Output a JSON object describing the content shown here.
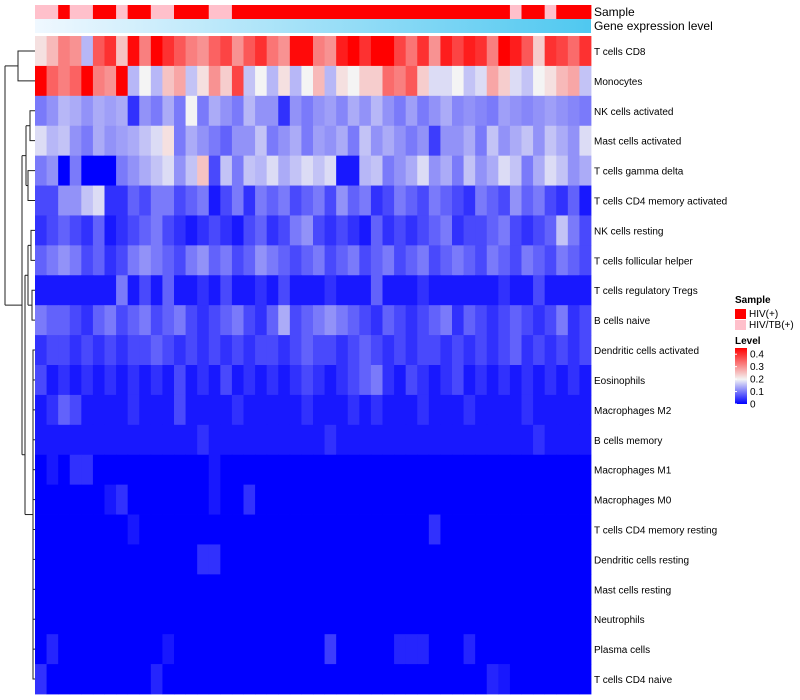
{
  "chart_data": {
    "type": "heatmap",
    "title": "",
    "annotation_tracks": [
      {
        "label": "Sample",
        "kind": "categorical"
      },
      {
        "label": "Gene expression level",
        "kind": "gradient"
      }
    ],
    "sample_group": [
      "B",
      "B",
      "A",
      "B",
      "B",
      "A",
      "A",
      "B",
      "A",
      "A",
      "B",
      "B",
      "A",
      "A",
      "A",
      "B",
      "B",
      "A",
      "A",
      "A",
      "A",
      "A",
      "A",
      "A",
      "A",
      "A",
      "A",
      "A",
      "A",
      "A",
      "A",
      "A",
      "A",
      "A",
      "A",
      "A",
      "A",
      "A",
      "A",
      "A",
      "A",
      "B",
      "A",
      "A",
      "B",
      "A",
      "A",
      "A"
    ],
    "rows": [
      "T cells CD8",
      "Monocytes",
      "NK cells activated",
      "Mast cells activated",
      "T cells gamma delta",
      "T cells CD4 memory activated",
      "NK cells resting",
      "T cells follicular helper",
      "T cells regulatory  Tregs",
      "B cells naive",
      "Dendritic cells activated",
      "Eosinophils",
      "Macrophages M2",
      "B cells memory",
      "Macrophages M1",
      "Macrophages M0",
      "T cells CD4 memory resting",
      "Dendritic cells resting",
      "Mast cells resting",
      "Neutrophils",
      "Plasma cells",
      "T cells CD4 naive"
    ],
    "values": [
      [
        0.22,
        0.26,
        0.32,
        0.3,
        0.15,
        0.36,
        0.4,
        0.25,
        0.44,
        0.32,
        0.45,
        0.4,
        0.36,
        0.32,
        0.3,
        0.35,
        0.38,
        0.3,
        0.36,
        0.4,
        0.33,
        0.3,
        0.44,
        0.44,
        0.32,
        0.3,
        0.42,
        0.45,
        0.4,
        0.45,
        0.45,
        0.38,
        0.33,
        0.4,
        0.3,
        0.42,
        0.38,
        0.42,
        0.4,
        0.32,
        0.45,
        0.42,
        0.36,
        0.24,
        0.4,
        0.38,
        0.34,
        0.4
      ],
      [
        0.45,
        0.35,
        0.32,
        0.35,
        0.45,
        0.32,
        0.3,
        0.45,
        0.15,
        0.2,
        0.15,
        0.25,
        0.28,
        0.16,
        0.22,
        0.3,
        0.24,
        0.38,
        0.16,
        0.2,
        0.15,
        0.22,
        0.15,
        0.2,
        0.26,
        0.15,
        0.22,
        0.2,
        0.24,
        0.24,
        0.34,
        0.32,
        0.36,
        0.24,
        0.18,
        0.18,
        0.2,
        0.16,
        0.18,
        0.28,
        0.24,
        0.18,
        0.16,
        0.2,
        0.22,
        0.26,
        0.28,
        0.16
      ],
      [
        0.1,
        0.12,
        0.15,
        0.14,
        0.12,
        0.14,
        0.13,
        0.14,
        0.04,
        0.12,
        0.1,
        0.14,
        0.1,
        0.2,
        0.1,
        0.14,
        0.12,
        0.1,
        0.15,
        0.12,
        0.12,
        0.04,
        0.12,
        0.1,
        0.12,
        0.13,
        0.11,
        0.14,
        0.12,
        0.15,
        0.12,
        0.1,
        0.13,
        0.1,
        0.12,
        0.14,
        0.11,
        0.12,
        0.11,
        0.1,
        0.13,
        0.12,
        0.11,
        0.12,
        0.13,
        0.12,
        0.11,
        0.1
      ],
      [
        0.18,
        0.15,
        0.16,
        0.12,
        0.1,
        0.14,
        0.12,
        0.13,
        0.14,
        0.16,
        0.18,
        0.22,
        0.1,
        0.14,
        0.12,
        0.1,
        0.08,
        0.12,
        0.12,
        0.16,
        0.1,
        0.12,
        0.14,
        0.1,
        0.13,
        0.12,
        0.14,
        0.1,
        0.16,
        0.12,
        0.14,
        0.12,
        0.1,
        0.12,
        0.05,
        0.12,
        0.12,
        0.14,
        0.1,
        0.16,
        0.12,
        0.14,
        0.16,
        0.12,
        0.16,
        0.14,
        0.12,
        0.18
      ],
      [
        0.1,
        0.12,
        0.0,
        0.1,
        0.0,
        0.0,
        0.0,
        0.1,
        0.12,
        0.14,
        0.16,
        0.18,
        0.12,
        0.16,
        0.25,
        0.06,
        0.16,
        0.1,
        0.16,
        0.15,
        0.18,
        0.14,
        0.16,
        0.18,
        0.16,
        0.18,
        0.02,
        0.02,
        0.15,
        0.16,
        0.1,
        0.12,
        0.14,
        0.18,
        0.12,
        0.14,
        0.1,
        0.16,
        0.12,
        0.14,
        0.18,
        0.16,
        0.1,
        0.14,
        0.18,
        0.16,
        0.12,
        0.14
      ],
      [
        0.06,
        0.06,
        0.12,
        0.12,
        0.16,
        0.18,
        0.04,
        0.04,
        0.08,
        0.06,
        0.1,
        0.1,
        0.06,
        0.08,
        0.1,
        0.02,
        0.06,
        0.1,
        0.04,
        0.1,
        0.08,
        0.1,
        0.06,
        0.08,
        0.1,
        0.06,
        0.12,
        0.08,
        0.1,
        0.04,
        0.06,
        0.1,
        0.08,
        0.06,
        0.1,
        0.08,
        0.06,
        0.04,
        0.1,
        0.08,
        0.06,
        0.12,
        0.08,
        0.1,
        0.06,
        0.04,
        0.08,
        0.02
      ],
      [
        0.04,
        0.06,
        0.08,
        0.06,
        0.04,
        0.08,
        0.02,
        0.04,
        0.06,
        0.08,
        0.1,
        0.06,
        0.04,
        0.02,
        0.04,
        0.06,
        0.04,
        0.02,
        0.06,
        0.08,
        0.04,
        0.06,
        0.1,
        0.12,
        0.06,
        0.04,
        0.06,
        0.04,
        0.02,
        0.08,
        0.04,
        0.06,
        0.04,
        0.06,
        0.08,
        0.1,
        0.04,
        0.06,
        0.06,
        0.08,
        0.1,
        0.06,
        0.04,
        0.06,
        0.08,
        0.16,
        0.1,
        0.06
      ],
      [
        0.08,
        0.1,
        0.12,
        0.1,
        0.06,
        0.08,
        0.04,
        0.06,
        0.1,
        0.12,
        0.1,
        0.08,
        0.06,
        0.1,
        0.12,
        0.08,
        0.1,
        0.06,
        0.08,
        0.12,
        0.1,
        0.08,
        0.06,
        0.08,
        0.1,
        0.06,
        0.08,
        0.1,
        0.06,
        0.08,
        0.1,
        0.06,
        0.08,
        0.1,
        0.06,
        0.08,
        0.1,
        0.08,
        0.06,
        0.1,
        0.08,
        0.06,
        0.1,
        0.08,
        0.06,
        0.1,
        0.08,
        0.06
      ],
      [
        0.02,
        0.02,
        0.02,
        0.02,
        0.02,
        0.02,
        0.02,
        0.1,
        0.02,
        0.06,
        0.02,
        0.08,
        0.02,
        0.02,
        0.04,
        0.02,
        0.06,
        0.02,
        0.02,
        0.04,
        0.02,
        0.06,
        0.02,
        0.02,
        0.02,
        0.04,
        0.02,
        0.02,
        0.02,
        0.08,
        0.02,
        0.02,
        0.02,
        0.04,
        0.02,
        0.02,
        0.02,
        0.02,
        0.02,
        0.02,
        0.04,
        0.02,
        0.02,
        0.06,
        0.02,
        0.02,
        0.02,
        0.02
      ],
      [
        0.1,
        0.08,
        0.08,
        0.06,
        0.04,
        0.08,
        0.1,
        0.06,
        0.08,
        0.1,
        0.06,
        0.08,
        0.1,
        0.06,
        0.04,
        0.06,
        0.08,
        0.1,
        0.06,
        0.04,
        0.08,
        0.14,
        0.06,
        0.08,
        0.1,
        0.12,
        0.1,
        0.08,
        0.06,
        0.04,
        0.08,
        0.06,
        0.04,
        0.06,
        0.08,
        0.1,
        0.04,
        0.08,
        0.06,
        0.04,
        0.06,
        0.08,
        0.06,
        0.04,
        0.06,
        0.1,
        0.04,
        0.06
      ],
      [
        0.04,
        0.06,
        0.06,
        0.04,
        0.06,
        0.04,
        0.06,
        0.04,
        0.06,
        0.06,
        0.08,
        0.06,
        0.04,
        0.06,
        0.04,
        0.06,
        0.04,
        0.06,
        0.04,
        0.06,
        0.06,
        0.04,
        0.06,
        0.08,
        0.06,
        0.06,
        0.04,
        0.06,
        0.08,
        0.06,
        0.04,
        0.06,
        0.04,
        0.06,
        0.06,
        0.04,
        0.06,
        0.04,
        0.06,
        0.04,
        0.06,
        0.08,
        0.04,
        0.06,
        0.04,
        0.06,
        0.04,
        0.06
      ],
      [
        0.06,
        0.02,
        0.04,
        0.02,
        0.04,
        0.02,
        0.04,
        0.02,
        0.04,
        0.02,
        0.04,
        0.02,
        0.06,
        0.02,
        0.04,
        0.02,
        0.06,
        0.02,
        0.04,
        0.02,
        0.04,
        0.02,
        0.04,
        0.06,
        0.04,
        0.02,
        0.04,
        0.06,
        0.08,
        0.1,
        0.04,
        0.02,
        0.06,
        0.04,
        0.02,
        0.04,
        0.06,
        0.02,
        0.04,
        0.02,
        0.04,
        0.02,
        0.04,
        0.02,
        0.04,
        0.02,
        0.04,
        0.02
      ],
      [
        0.02,
        0.04,
        0.08,
        0.06,
        0.02,
        0.02,
        0.02,
        0.02,
        0.04,
        0.02,
        0.02,
        0.02,
        0.06,
        0.02,
        0.02,
        0.02,
        0.02,
        0.04,
        0.02,
        0.02,
        0.02,
        0.02,
        0.02,
        0.04,
        0.02,
        0.02,
        0.02,
        0.04,
        0.02,
        0.04,
        0.02,
        0.02,
        0.02,
        0.04,
        0.02,
        0.02,
        0.02,
        0.04,
        0.02,
        0.02,
        0.02,
        0.02,
        0.04,
        0.02,
        0.02,
        0.02,
        0.02,
        0.02
      ],
      [
        0.02,
        0.02,
        0.02,
        0.02,
        0.02,
        0.02,
        0.02,
        0.02,
        0.02,
        0.02,
        0.02,
        0.02,
        0.02,
        0.02,
        0.04,
        0.02,
        0.02,
        0.02,
        0.02,
        0.02,
        0.02,
        0.02,
        0.02,
        0.02,
        0.02,
        0.04,
        0.02,
        0.02,
        0.02,
        0.02,
        0.02,
        0.02,
        0.02,
        0.02,
        0.02,
        0.02,
        0.02,
        0.02,
        0.02,
        0.02,
        0.02,
        0.02,
        0.02,
        0.04,
        0.02,
        0.02,
        0.02,
        0.02
      ],
      [
        0.0,
        0.02,
        0.0,
        0.04,
        0.04,
        0.0,
        0.0,
        0.0,
        0.0,
        0.0,
        0.0,
        0.0,
        0.0,
        0.0,
        0.0,
        0.02,
        0.0,
        0.0,
        0.0,
        0.0,
        0.0,
        0.0,
        0.0,
        0.0,
        0.0,
        0.0,
        0.0,
        0.0,
        0.0,
        0.0,
        0.0,
        0.0,
        0.0,
        0.0,
        0.0,
        0.0,
        0.0,
        0.0,
        0.0,
        0.0,
        0.0,
        0.0,
        0.0,
        0.0,
        0.0,
        0.0,
        0.0,
        0.0
      ],
      [
        0.0,
        0.0,
        0.0,
        0.0,
        0.0,
        0.0,
        0.02,
        0.04,
        0.0,
        0.0,
        0.0,
        0.0,
        0.0,
        0.0,
        0.0,
        0.02,
        0.0,
        0.0,
        0.04,
        0.0,
        0.0,
        0.0,
        0.0,
        0.0,
        0.0,
        0.0,
        0.0,
        0.0,
        0.0,
        0.0,
        0.0,
        0.0,
        0.0,
        0.0,
        0.0,
        0.0,
        0.0,
        0.0,
        0.0,
        0.0,
        0.0,
        0.0,
        0.0,
        0.0,
        0.0,
        0.0,
        0.0,
        0.0
      ],
      [
        0.0,
        0.0,
        0.0,
        0.0,
        0.0,
        0.0,
        0.0,
        0.0,
        0.02,
        0.0,
        0.0,
        0.0,
        0.0,
        0.0,
        0.0,
        0.0,
        0.0,
        0.0,
        0.0,
        0.0,
        0.0,
        0.0,
        0.0,
        0.0,
        0.0,
        0.0,
        0.0,
        0.0,
        0.0,
        0.0,
        0.0,
        0.0,
        0.0,
        0.0,
        0.04,
        0.0,
        0.0,
        0.0,
        0.0,
        0.0,
        0.0,
        0.0,
        0.0,
        0.0,
        0.0,
        0.0,
        0.0,
        0.0
      ],
      [
        0.0,
        0.0,
        0.0,
        0.0,
        0.0,
        0.0,
        0.0,
        0.0,
        0.0,
        0.0,
        0.0,
        0.0,
        0.0,
        0.0,
        0.04,
        0.04,
        0.0,
        0.0,
        0.0,
        0.0,
        0.0,
        0.0,
        0.0,
        0.0,
        0.0,
        0.0,
        0.0,
        0.0,
        0.0,
        0.0,
        0.0,
        0.0,
        0.0,
        0.0,
        0.0,
        0.0,
        0.0,
        0.0,
        0.0,
        0.0,
        0.0,
        0.0,
        0.0,
        0.0,
        0.0,
        0.0,
        0.0,
        0.0
      ],
      [
        0.0,
        0.0,
        0.0,
        0.0,
        0.0,
        0.0,
        0.0,
        0.0,
        0.0,
        0.0,
        0.0,
        0.0,
        0.0,
        0.0,
        0.0,
        0.0,
        0.0,
        0.0,
        0.0,
        0.0,
        0.0,
        0.0,
        0.0,
        0.0,
        0.0,
        0.0,
        0.0,
        0.0,
        0.0,
        0.0,
        0.0,
        0.0,
        0.0,
        0.0,
        0.0,
        0.0,
        0.0,
        0.0,
        0.0,
        0.0,
        0.0,
        0.0,
        0.0,
        0.0,
        0.0,
        0.0,
        0.0,
        0.0
      ],
      [
        0.0,
        0.0,
        0.0,
        0.0,
        0.0,
        0.0,
        0.0,
        0.0,
        0.0,
        0.0,
        0.0,
        0.0,
        0.0,
        0.0,
        0.0,
        0.0,
        0.0,
        0.0,
        0.0,
        0.0,
        0.0,
        0.0,
        0.0,
        0.0,
        0.0,
        0.0,
        0.0,
        0.0,
        0.0,
        0.0,
        0.0,
        0.0,
        0.0,
        0.0,
        0.0,
        0.0,
        0.0,
        0.0,
        0.0,
        0.0,
        0.0,
        0.0,
        0.0,
        0.0,
        0.0,
        0.0,
        0.0,
        0.0
      ],
      [
        0.0,
        0.03,
        0.0,
        0.0,
        0.0,
        0.0,
        0.0,
        0.0,
        0.0,
        0.0,
        0.0,
        0.02,
        0.0,
        0.0,
        0.0,
        0.0,
        0.0,
        0.0,
        0.0,
        0.0,
        0.0,
        0.0,
        0.0,
        0.0,
        0.0,
        0.05,
        0.0,
        0.0,
        0.0,
        0.0,
        0.0,
        0.03,
        0.03,
        0.03,
        0.0,
        0.0,
        0.0,
        0.03,
        0.0,
        0.0,
        0.0,
        0.0,
        0.0,
        0.0,
        0.0,
        0.0,
        0.0,
        0.0
      ],
      [
        0.04,
        0.0,
        0.0,
        0.0,
        0.0,
        0.0,
        0.0,
        0.0,
        0.0,
        0.0,
        0.03,
        0.0,
        0.0,
        0.0,
        0.0,
        0.0,
        0.0,
        0.0,
        0.0,
        0.0,
        0.0,
        0.0,
        0.0,
        0.0,
        0.0,
        0.0,
        0.0,
        0.0,
        0.0,
        0.0,
        0.0,
        0.0,
        0.0,
        0.0,
        0.0,
        0.0,
        0.0,
        0.0,
        0.0,
        0.03,
        0.02,
        0.0,
        0.0,
        0.0,
        0.0,
        0.0,
        0.0,
        0.0
      ]
    ],
    "legend": {
      "sample_title": "Sample",
      "sample_groups": [
        {
          "key": "A",
          "label": "HIV(+)",
          "color": "#ff0000"
        },
        {
          "key": "B",
          "label": "HIV/TB(+)",
          "color": "#ffc0cb"
        }
      ],
      "level_title": "Level",
      "level_ticks": [
        "0.4",
        "0.3",
        "0.2",
        "0.1",
        "0"
      ],
      "level_tick_values": [
        0.4,
        0.3,
        0.2,
        0.1,
        0.0
      ]
    },
    "color_scale": {
      "min": 0.0,
      "mid": 0.2,
      "max": 0.45,
      "low": "#0000ff",
      "midColor": "#f4f4f4",
      "high": "#ff0000"
    },
    "gradient_track_colors": [
      "#f0f8ff",
      "#4fc8f0"
    ]
  }
}
